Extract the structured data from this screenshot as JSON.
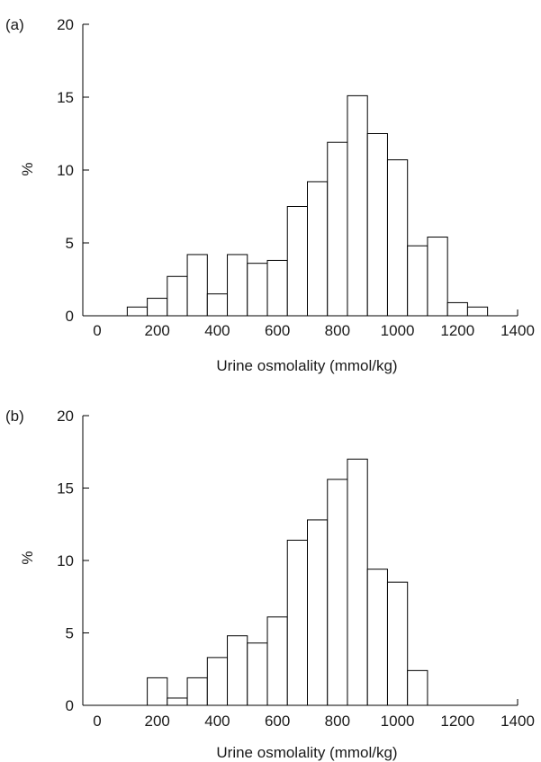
{
  "chart_data": [
    {
      "type": "bar",
      "panel_label": "(a)",
      "xlabel": "Urine osmolality (mmol/kg)",
      "ylabel": "%",
      "xlim": [
        0,
        1400
      ],
      "ylim": [
        0,
        20
      ],
      "x_ticks": [
        "0",
        "200",
        "400",
        "600",
        "800",
        "1000",
        "1200",
        "1400"
      ],
      "y_ticks": [
        "0",
        "5",
        "10",
        "15",
        "20"
      ],
      "bin_width": 66.67,
      "bins": [
        {
          "x0": 100,
          "value": 0.6
        },
        {
          "x0": 166.7,
          "value": 1.2
        },
        {
          "x0": 233.3,
          "value": 2.7
        },
        {
          "x0": 300,
          "value": 4.2
        },
        {
          "x0": 366.7,
          "value": 1.5
        },
        {
          "x0": 433.3,
          "value": 4.2
        },
        {
          "x0": 500,
          "value": 3.6
        },
        {
          "x0": 566.7,
          "value": 3.8
        },
        {
          "x0": 633.3,
          "value": 7.5
        },
        {
          "x0": 700,
          "value": 9.2
        },
        {
          "x0": 766.7,
          "value": 11.9
        },
        {
          "x0": 833.3,
          "value": 15.1
        },
        {
          "x0": 900,
          "value": 12.5
        },
        {
          "x0": 966.7,
          "value": 10.7
        },
        {
          "x0": 1033.3,
          "value": 4.8
        },
        {
          "x0": 1100,
          "value": 5.4
        },
        {
          "x0": 1166.7,
          "value": 0.9
        },
        {
          "x0": 1233.3,
          "value": 0.6
        }
      ]
    },
    {
      "type": "bar",
      "panel_label": "(b)",
      "xlabel": "Urine osmolality (mmol/kg)",
      "ylabel": "%",
      "xlim": [
        0,
        1400
      ],
      "ylim": [
        0,
        20
      ],
      "x_ticks": [
        "0",
        "200",
        "400",
        "600",
        "800",
        "1000",
        "1200",
        "1400"
      ],
      "y_ticks": [
        "0",
        "5",
        "10",
        "15",
        "20"
      ],
      "bin_width": 66.67,
      "bins": [
        {
          "x0": 166.7,
          "value": 1.9
        },
        {
          "x0": 233.3,
          "value": 0.5
        },
        {
          "x0": 300,
          "value": 1.9
        },
        {
          "x0": 366.7,
          "value": 3.3
        },
        {
          "x0": 433.3,
          "value": 4.8
        },
        {
          "x0": 500,
          "value": 4.3
        },
        {
          "x0": 566.7,
          "value": 6.1
        },
        {
          "x0": 633.3,
          "value": 11.4
        },
        {
          "x0": 700,
          "value": 12.8
        },
        {
          "x0": 766.7,
          "value": 15.6
        },
        {
          "x0": 833.3,
          "value": 17.0
        },
        {
          "x0": 900,
          "value": 9.4
        },
        {
          "x0": 966.7,
          "value": 8.5
        },
        {
          "x0": 1033.3,
          "value": 2.4
        }
      ]
    }
  ]
}
